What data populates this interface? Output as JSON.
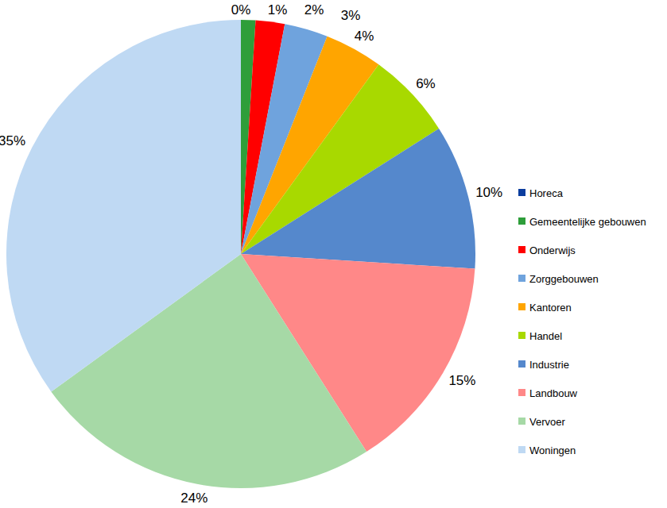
{
  "chart_data": {
    "type": "pie",
    "categories": [
      "Horeca",
      "Gemeentelijke gebouwen",
      "Onderwijs",
      "Zorggebouwen",
      "Kantoren",
      "Handel",
      "Industrie",
      "Landbouw",
      "Vervoer",
      "Woningen"
    ],
    "values": [
      0,
      1,
      2,
      3,
      4,
      6,
      10,
      15,
      24,
      35
    ],
    "value_labels": [
      "0%",
      "1%",
      "2%",
      "3%",
      "4%",
      "6%",
      "10%",
      "15%",
      "24%",
      "35%"
    ],
    "colors": [
      "#0b3d9e",
      "#2e9e3a",
      "#ff0000",
      "#6fa3dd",
      "#ffa500",
      "#a8d900",
      "#5588cc",
      "#ff8888",
      "#a6d9a6",
      "#bfd9f3"
    ],
    "data_labels": true,
    "legend": "right"
  }
}
